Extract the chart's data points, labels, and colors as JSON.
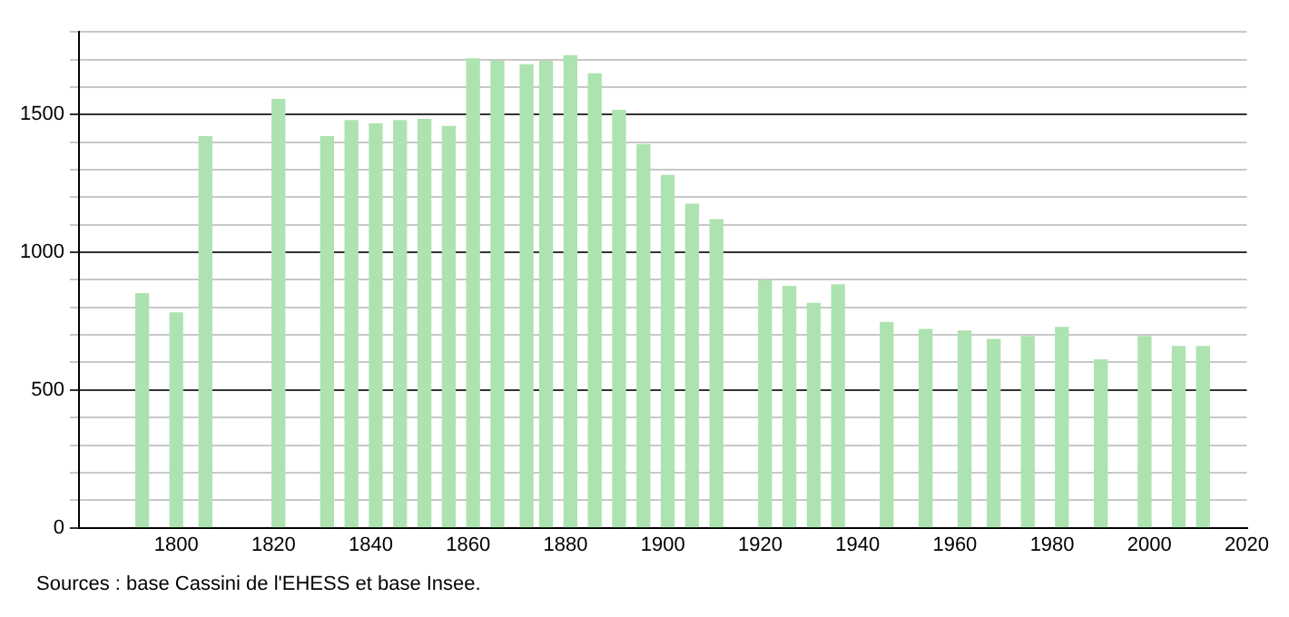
{
  "chart_data": {
    "type": "bar",
    "x": [
      1793,
      1800,
      1806,
      1821,
      1831,
      1836,
      1841,
      1846,
      1851,
      1856,
      1861,
      1866,
      1872,
      1876,
      1881,
      1886,
      1891,
      1896,
      1901,
      1906,
      1911,
      1921,
      1926,
      1931,
      1936,
      1946,
      1954,
      1962,
      1968,
      1975,
      1982,
      1990,
      1999,
      2006,
      2011
    ],
    "values": [
      850,
      780,
      1420,
      1555,
      1420,
      1478,
      1466,
      1478,
      1482,
      1457,
      1702,
      1693,
      1681,
      1693,
      1714,
      1648,
      1515,
      1391,
      1279,
      1174,
      1118,
      896,
      876,
      814,
      882,
      745,
      720,
      714,
      683,
      694,
      727,
      609,
      694,
      658,
      658
    ],
    "color": "#ade3b0",
    "xlim": [
      1780,
      2020
    ],
    "xticks": [
      1800,
      1820,
      1840,
      1860,
      1880,
      1900,
      1920,
      1940,
      1960,
      1980,
      2000,
      2020
    ],
    "ylim": [
      0,
      1800
    ],
    "yticks": [
      0,
      {
        "value": 100,
        "label": null
      },
      {
        "value": 200,
        "label": null
      },
      {
        "value": 300,
        "label": null
      },
      {
        "value": 400,
        "label": null
      },
      500,
      {
        "value": 600,
        "label": null
      },
      {
        "value": 700,
        "label": null
      },
      {
        "value": 800,
        "label": null
      },
      {
        "value": 900,
        "label": null
      },
      1000,
      {
        "value": 1100,
        "label": null
      },
      {
        "value": 1200,
        "label": null
      },
      {
        "value": 1300,
        "label": null
      },
      {
        "value": 1400,
        "label": null
      },
      1500,
      {
        "value": 1600,
        "label": null
      },
      {
        "value": 1700,
        "label": null
      },
      {
        "value": 1800,
        "label": null
      }
    ],
    "grid": "y",
    "annotations": [
      "Sources : base Cassini de l'EHESS et base Insee."
    ]
  }
}
